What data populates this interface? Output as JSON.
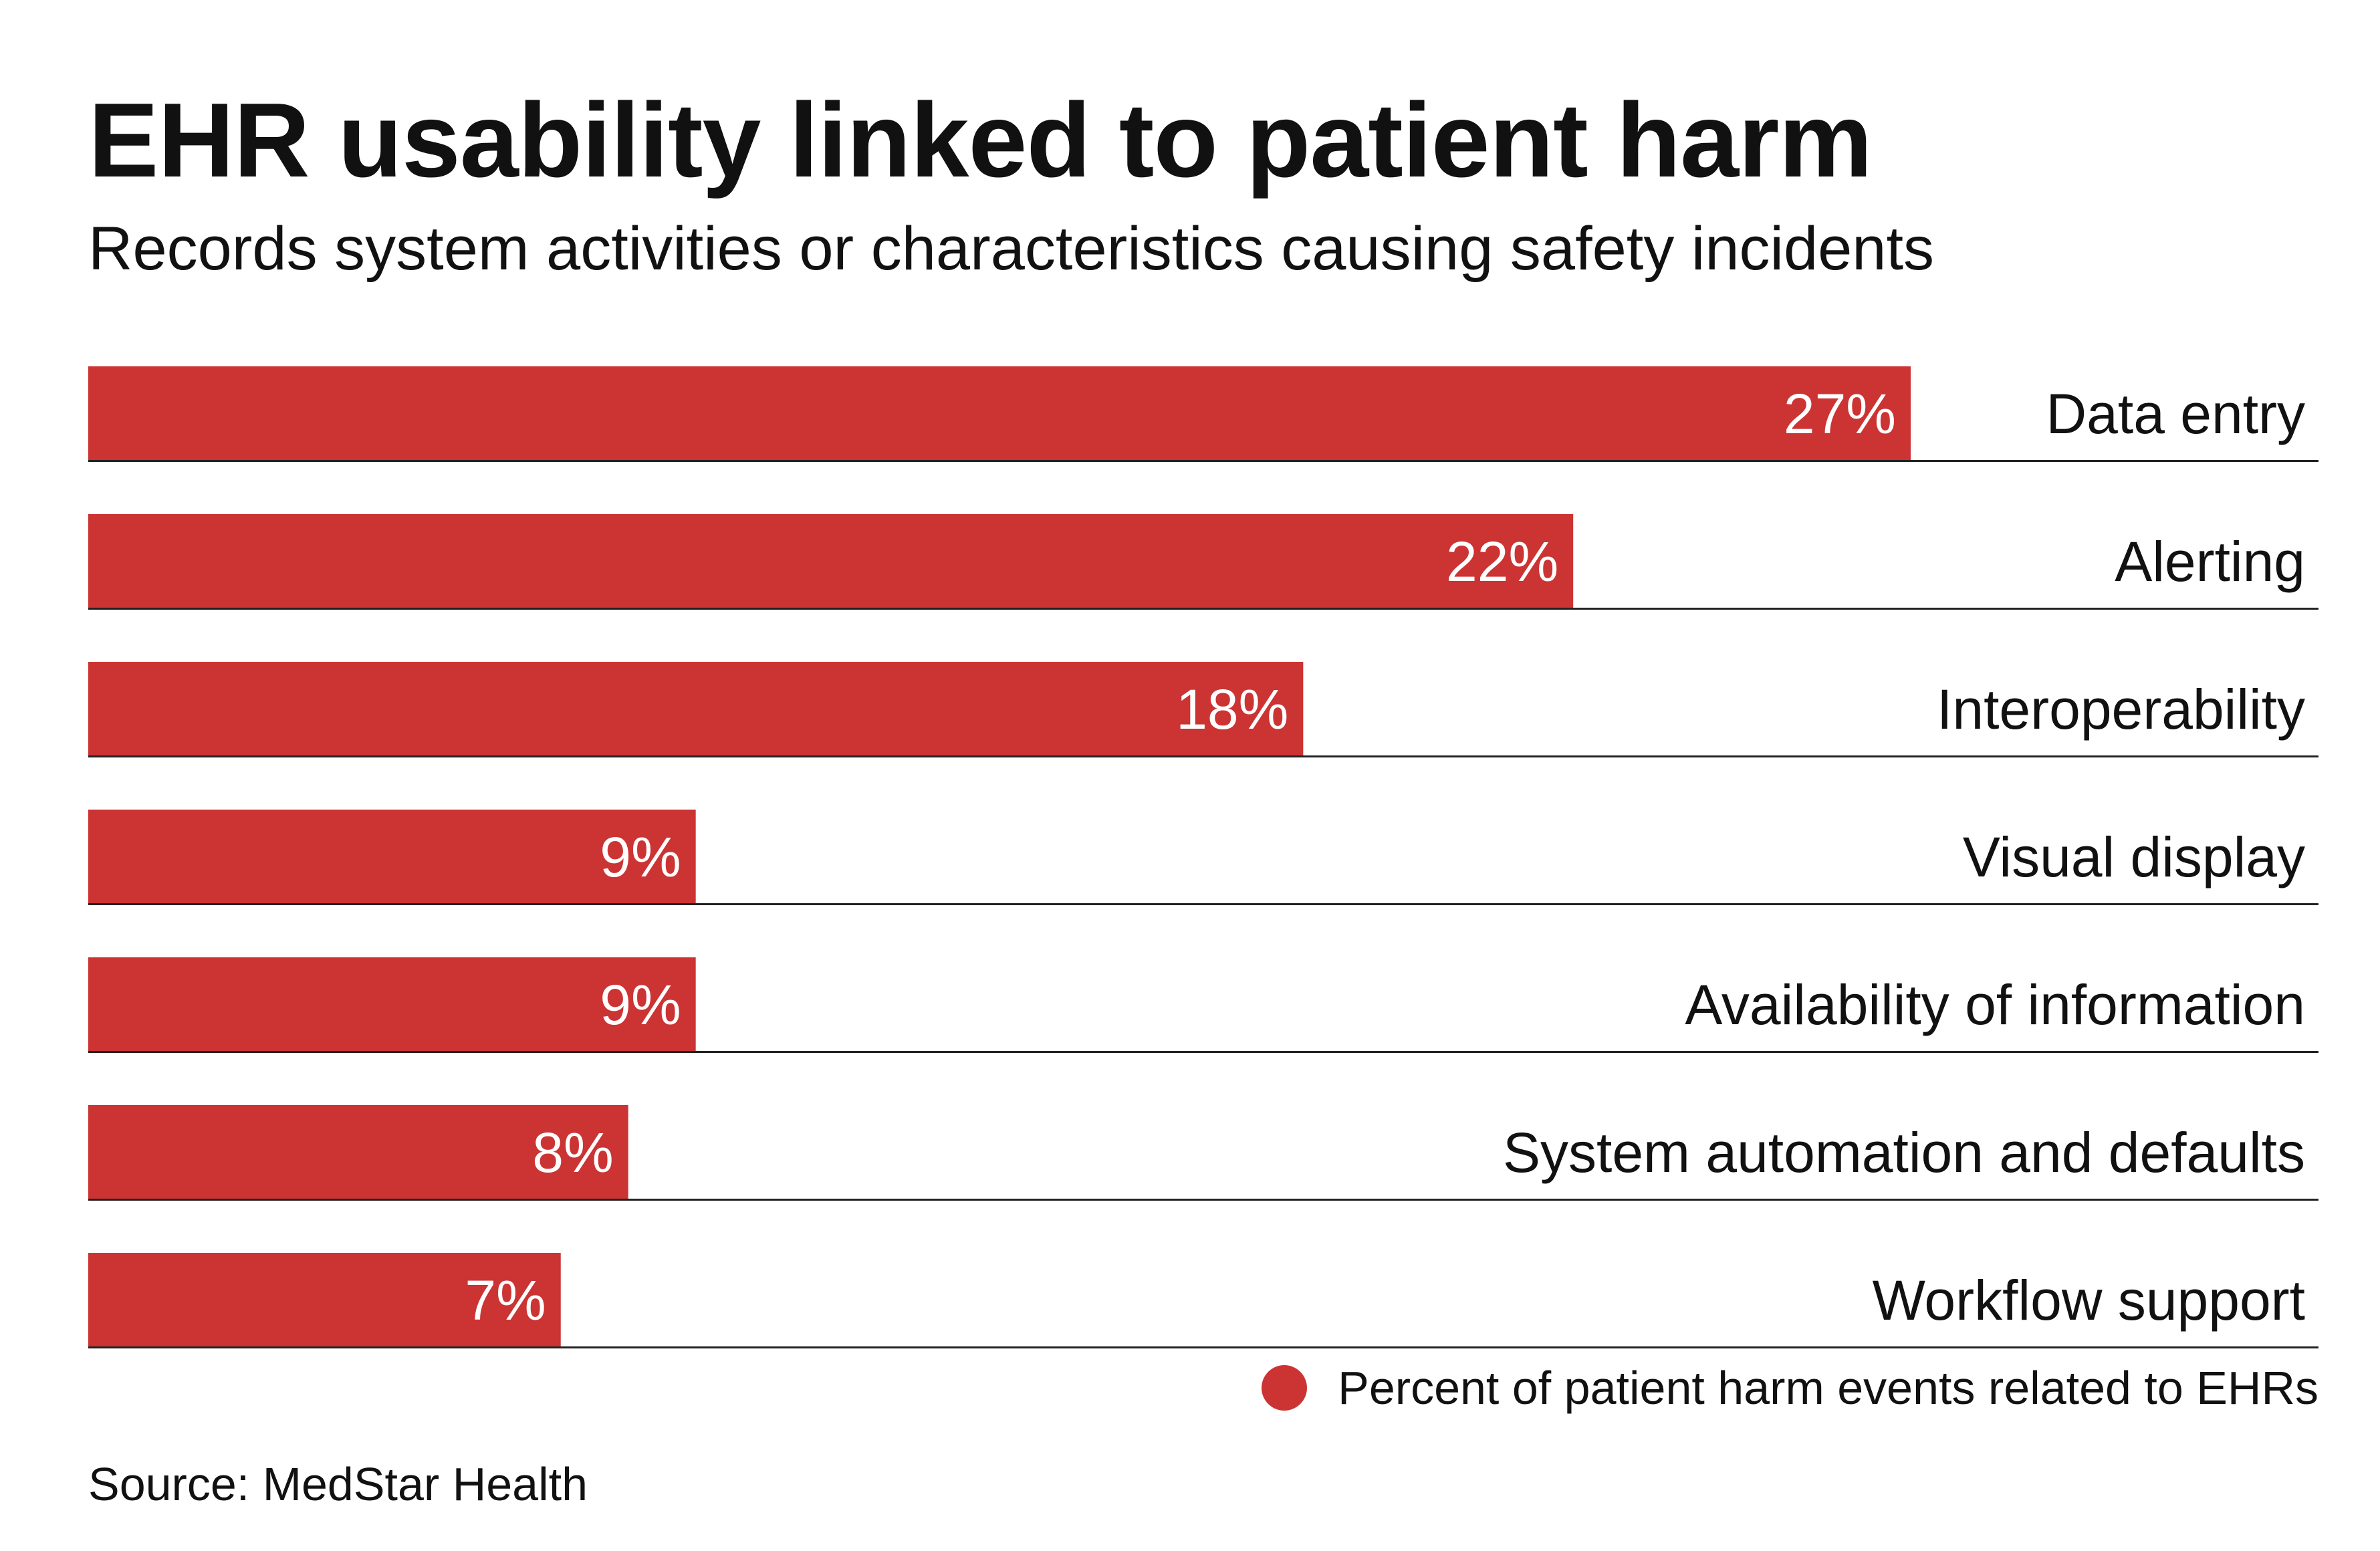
{
  "colors": {
    "bar": "#cc3333",
    "axis_line": "#222222",
    "text": "#111111"
  },
  "chart_data": {
    "type": "bar",
    "orientation": "horizontal",
    "title": "EHR usability linked to patient harm",
    "subtitle": "Records system activities or characteristics causing safety incidents",
    "categories": [
      "Data entry",
      "Alerting",
      "Interoperability",
      "Visual display",
      "Availability of information",
      "System automation and defaults",
      "Workflow support"
    ],
    "series": [
      {
        "name": "Percent of patient harm events related to EHRs",
        "values": [
          27,
          22,
          18,
          9,
          9,
          8,
          7
        ]
      }
    ],
    "value_labels": [
      "27%",
      "22%",
      "18%",
      "9%",
      "9%",
      "8%",
      "7%"
    ],
    "unit": "%",
    "xlim": [
      0,
      33
    ],
    "grid": false,
    "legend_position": "bottom-right",
    "source": "Source: MedStar Health"
  }
}
